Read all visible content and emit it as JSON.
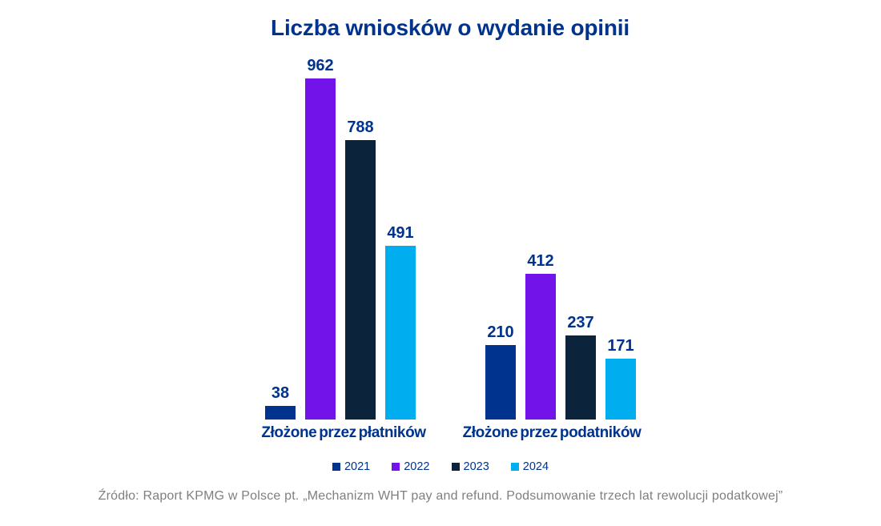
{
  "title": "Liczba wniosków o wydanie opinii",
  "source_note": "Źródło: Raport KPMG w Polsce pt. „Mechanizm WHT pay and refund. Podsumowanie trzech lat rewolucji podatkowej”",
  "colors": {
    "title_text": "#00338D",
    "value_label_text": "#00338D",
    "category_label_text": "#00338D",
    "legend_text": "#00338D",
    "source_text": "#7F7F7F",
    "background": "#FFFFFF"
  },
  "chart_data": {
    "type": "bar",
    "title": "Liczba wniosków o wydanie opinii",
    "categories": [
      "Złożone przez płatników",
      "Złożone przez podatników"
    ],
    "series": [
      {
        "name": "2021",
        "color": "#00338D",
        "values": [
          38,
          210
        ]
      },
      {
        "name": "2022",
        "color": "#7213EA",
        "values": [
          962,
          412
        ]
      },
      {
        "name": "2023",
        "color": "#0C233C",
        "values": [
          788,
          237
        ]
      },
      {
        "name": "2024",
        "color": "#00AEF0",
        "values": [
          491,
          171
        ]
      }
    ],
    "ylim": [
      0,
      962
    ],
    "grid": false,
    "data_labels": true,
    "legend_position": "bottom",
    "source": "Źródło: Raport KPMG w Polsce pt. „Mechanizm WHT pay and refund. Podsumowanie trzech lat rewolucji podatkowej”"
  }
}
